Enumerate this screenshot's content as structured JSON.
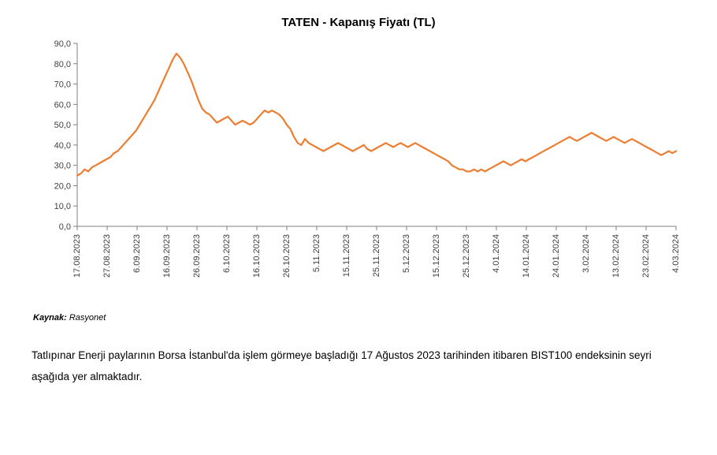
{
  "chart": {
    "type": "line",
    "title": "TATEN - Kapanış Fiyatı (TL)",
    "title_fontsize": 15,
    "title_fontweight": 700,
    "background_color": "#ffffff",
    "axis_color": "#7f7f7f",
    "tick_color": "#7f7f7f",
    "tick_label_color": "#404040",
    "line_color": "#ed7d31",
    "line_width": 2.2,
    "ylim": [
      0,
      90
    ],
    "ytick_step": 10,
    "yticks_labels": [
      "0,0",
      "10,0",
      "20,0",
      "30,0",
      "40,0",
      "50,0",
      "60,0",
      "70,0",
      "80,0",
      "90,0"
    ],
    "xticks_labels": [
      "17.08.2023",
      "27.08.2023",
      "6.09.2023",
      "16.09.2023",
      "26.09.2023",
      "6.10.2023",
      "16.10.2023",
      "26.10.2023",
      "5.11.2023",
      "15.11.2023",
      "25.11.2023",
      "5.12.2023",
      "15.12.2023",
      "25.12.2023",
      "4.01.2024",
      "14.01.2024",
      "24.01.2024",
      "3.02.2024",
      "13.02.2024",
      "23.02.2024",
      "4.03.2024"
    ],
    "label_fontsize": 11,
    "values": [
      25,
      26,
      28,
      27,
      29,
      30,
      31,
      32,
      33,
      34,
      36,
      37,
      39,
      41,
      43,
      45,
      47,
      50,
      53,
      56,
      59,
      62,
      66,
      70,
      74,
      78,
      82,
      85,
      83,
      80,
      76,
      72,
      67,
      62,
      58,
      56,
      55,
      53,
      51,
      52,
      53,
      54,
      52,
      50,
      51,
      52,
      51,
      50,
      51,
      53,
      55,
      57,
      56,
      57,
      56,
      55,
      53,
      50,
      48,
      44,
      41,
      40,
      43,
      41,
      40,
      39,
      38,
      37,
      38,
      39,
      40,
      41,
      40,
      39,
      38,
      37,
      38,
      39,
      40,
      38,
      37,
      38,
      39,
      40,
      41,
      40,
      39,
      40,
      41,
      40,
      39,
      40,
      41,
      40,
      39,
      38,
      37,
      36,
      35,
      34,
      33,
      32,
      30,
      29,
      28,
      28,
      27,
      27,
      28,
      27,
      28,
      27,
      28,
      29,
      30,
      31,
      32,
      31,
      30,
      31,
      32,
      33,
      32,
      33,
      34,
      35,
      36,
      37,
      38,
      39,
      40,
      41,
      42,
      43,
      44,
      43,
      42,
      43,
      44,
      45,
      46,
      45,
      44,
      43,
      42,
      43,
      44,
      43,
      42,
      41,
      42,
      43,
      42,
      41,
      40,
      39,
      38,
      37,
      36,
      35,
      36,
      37,
      36,
      37
    ]
  },
  "source": {
    "label": "Kaynak:",
    "value": "Rasyonet"
  },
  "body_text": "Tatlıpınar Enerji paylarının Borsa İstanbul'da işlem görmeye başladığı 17 Ağustos 2023 tarihinden itibaren BIST100 endeksinin seyri aşağıda yer almaktadır."
}
